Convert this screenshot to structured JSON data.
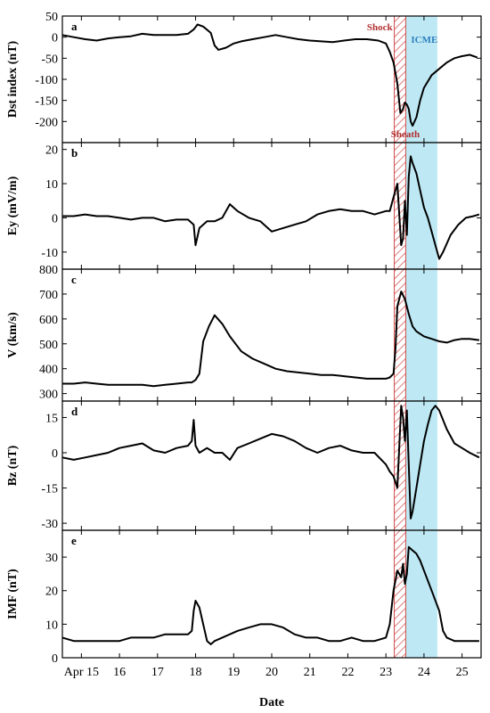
{
  "chart_data": [
    {
      "type": "line",
      "panel_label": "a",
      "ylabel": "Dst index (nT)",
      "ylim": [
        -250,
        50
      ],
      "yticks": [
        50,
        0,
        -50,
        -100,
        -150,
        -200
      ],
      "x": [
        14.5,
        14.8,
        15.1,
        15.4,
        15.7,
        16.0,
        16.3,
        16.6,
        16.9,
        17.2,
        17.5,
        17.8,
        17.95,
        18.05,
        18.2,
        18.4,
        18.5,
        18.6,
        18.8,
        19.0,
        19.2,
        19.5,
        19.8,
        20.1,
        20.4,
        20.7,
        21.0,
        21.3,
        21.6,
        21.9,
        22.2,
        22.5,
        22.8,
        23.0,
        23.1,
        23.2,
        23.3,
        23.38,
        23.45,
        23.5,
        23.55,
        23.6,
        23.65,
        23.7,
        23.8,
        23.9,
        24.0,
        24.2,
        24.4,
        24.6,
        24.8,
        25.0,
        25.2,
        25.4
      ],
      "y": [
        5,
        0,
        -5,
        -8,
        -3,
        0,
        2,
        8,
        5,
        5,
        5,
        8,
        18,
        30,
        25,
        10,
        -20,
        -30,
        -25,
        -15,
        -10,
        -5,
        0,
        5,
        0,
        -5,
        -8,
        -10,
        -12,
        -8,
        -5,
        -5,
        -8,
        -15,
        -35,
        -60,
        -110,
        -180,
        -170,
        -155,
        -160,
        -170,
        -200,
        -210,
        -190,
        -150,
        -120,
        -90,
        -75,
        -60,
        -50,
        -45,
        -42,
        -48
      ],
      "annotations": {
        "shock": "Shock",
        "icme": "ICME",
        "sheath": "Sheath"
      }
    },
    {
      "type": "line",
      "panel_label": "b",
      "ylabel": "Ey (mV/m)",
      "ylim": [
        -15,
        22
      ],
      "yticks": [
        20,
        10,
        0,
        -10
      ],
      "x": [
        14.5,
        14.8,
        15.1,
        15.4,
        15.7,
        16.0,
        16.3,
        16.6,
        16.9,
        17.2,
        17.5,
        17.8,
        17.95,
        18.0,
        18.1,
        18.3,
        18.5,
        18.7,
        18.9,
        19.1,
        19.4,
        19.7,
        20.0,
        20.3,
        20.6,
        20.9,
        21.2,
        21.5,
        21.8,
        22.1,
        22.4,
        22.7,
        23.0,
        23.1,
        23.2,
        23.3,
        23.4,
        23.45,
        23.5,
        23.55,
        23.6,
        23.65,
        23.7,
        23.8,
        23.9,
        24.0,
        24.1,
        24.2,
        24.3,
        24.4,
        24.5,
        24.7,
        24.9,
        25.1,
        25.3,
        25.45
      ],
      "y": [
        0.5,
        0.5,
        1,
        0.5,
        0.5,
        0,
        -0.5,
        0,
        0,
        -1,
        -0.5,
        -0.5,
        -2,
        -8,
        -3,
        -1,
        -1,
        0,
        4,
        2,
        0,
        -1,
        -4,
        -3,
        -2,
        -1,
        1,
        2,
        2.5,
        2,
        2,
        1,
        2,
        2,
        6,
        10,
        -8,
        -6,
        5,
        -5,
        12,
        18,
        16,
        13,
        8,
        3,
        0,
        -4,
        -8,
        -12,
        -10,
        -5,
        -2,
        0,
        0.5,
        1
      ]
    },
    {
      "type": "line",
      "panel_label": "c",
      "ylabel": "V (km/s)",
      "ylim": [
        270,
        800
      ],
      "yticks": [
        800,
        700,
        600,
        500,
        400,
        300
      ],
      "x": [
        14.5,
        14.8,
        15.1,
        15.4,
        15.7,
        16.0,
        16.3,
        16.6,
        16.9,
        17.2,
        17.5,
        17.8,
        17.9,
        18.0,
        18.1,
        18.2,
        18.35,
        18.5,
        18.7,
        18.9,
        19.2,
        19.5,
        19.8,
        20.1,
        20.4,
        20.7,
        21.0,
        21.3,
        21.6,
        21.9,
        22.2,
        22.5,
        22.8,
        23.0,
        23.1,
        23.2,
        23.25,
        23.3,
        23.4,
        23.5,
        23.6,
        23.7,
        23.8,
        24.0,
        24.2,
        24.4,
        24.6,
        24.8,
        25.0,
        25.2,
        25.45
      ],
      "y": [
        340,
        340,
        345,
        340,
        335,
        335,
        335,
        335,
        330,
        335,
        340,
        345,
        345,
        355,
        380,
        510,
        570,
        615,
        580,
        530,
        470,
        440,
        420,
        400,
        390,
        385,
        380,
        375,
        375,
        370,
        365,
        360,
        360,
        360,
        365,
        380,
        480,
        650,
        710,
        680,
        620,
        570,
        550,
        530,
        520,
        510,
        505,
        515,
        520,
        520,
        515
      ]
    },
    {
      "type": "line",
      "panel_label": "d",
      "ylabel": "Bz (nT)",
      "ylim": [
        -33,
        22
      ],
      "yticks": [
        15,
        0,
        -15,
        -30
      ],
      "x": [
        14.5,
        14.8,
        15.1,
        15.4,
        15.7,
        16.0,
        16.3,
        16.6,
        16.9,
        17.2,
        17.5,
        17.8,
        17.9,
        17.95,
        18.0,
        18.1,
        18.3,
        18.5,
        18.7,
        18.9,
        19.1,
        19.4,
        19.7,
        20.0,
        20.3,
        20.6,
        20.9,
        21.2,
        21.5,
        21.8,
        22.1,
        22.4,
        22.7,
        23.0,
        23.1,
        23.2,
        23.3,
        23.4,
        23.45,
        23.5,
        23.55,
        23.6,
        23.65,
        23.7,
        23.8,
        23.9,
        24.0,
        24.1,
        24.2,
        24.3,
        24.4,
        24.6,
        24.8,
        25.0,
        25.2,
        25.45
      ],
      "y": [
        -2,
        -3,
        -2,
        -1,
        0,
        2,
        3,
        4,
        1,
        0,
        2,
        3,
        5,
        14,
        3,
        0,
        2,
        0,
        0,
        -3,
        2,
        4,
        6,
        8,
        7,
        5,
        2,
        0,
        2,
        3,
        1,
        0,
        0,
        -5,
        -8,
        -10,
        -15,
        20,
        15,
        5,
        18,
        -5,
        -28,
        -25,
        -15,
        -5,
        5,
        12,
        18,
        20,
        18,
        10,
        4,
        2,
        0,
        -2
      ]
    },
    {
      "type": "line",
      "panel_label": "e",
      "ylabel": "IMF (nT)",
      "ylim": [
        0,
        38
      ],
      "yticks": [
        30,
        20,
        10,
        0
      ],
      "x": [
        14.5,
        14.8,
        15.1,
        15.4,
        15.7,
        16.0,
        16.3,
        16.6,
        16.9,
        17.2,
        17.5,
        17.8,
        17.9,
        17.95,
        18.0,
        18.1,
        18.3,
        18.4,
        18.5,
        18.7,
        18.9,
        19.1,
        19.4,
        19.7,
        20.0,
        20.3,
        20.6,
        20.9,
        21.2,
        21.5,
        21.8,
        22.1,
        22.4,
        22.7,
        23.0,
        23.1,
        23.2,
        23.3,
        23.4,
        23.45,
        23.5,
        23.55,
        23.6,
        23.7,
        23.8,
        23.9,
        24.0,
        24.2,
        24.4,
        24.5,
        24.6,
        24.8,
        25.0,
        25.2,
        25.45
      ],
      "y": [
        6,
        5,
        5,
        5,
        5,
        5,
        6,
        6,
        6,
        7,
        7,
        7,
        8,
        14,
        17,
        15,
        5,
        4,
        5,
        6,
        7,
        8,
        9,
        10,
        10,
        9,
        7,
        6,
        6,
        5,
        5,
        6,
        5,
        5,
        6,
        10,
        20,
        26,
        24,
        28,
        22,
        25,
        33,
        32,
        31,
        29,
        26,
        20,
        14,
        8,
        6,
        5,
        5,
        5,
        5
      ]
    }
  ],
  "x_axis": {
    "xlim": [
      14.5,
      25.5
    ],
    "ticks": [
      15,
      16,
      17,
      18,
      19,
      20,
      21,
      22,
      23,
      24,
      25
    ],
    "tick_labels": [
      "Apr 15",
      "16",
      "17",
      "18",
      "19",
      "20",
      "21",
      "22",
      "23",
      "24",
      "25"
    ],
    "xlabel": "Date"
  },
  "regions": {
    "sheath": [
      23.22,
      23.52
    ],
    "icme": [
      23.52,
      24.35
    ]
  },
  "colors": {
    "line": "#000000",
    "sheath": "#d04848",
    "icme": "#a8e2f0"
  }
}
